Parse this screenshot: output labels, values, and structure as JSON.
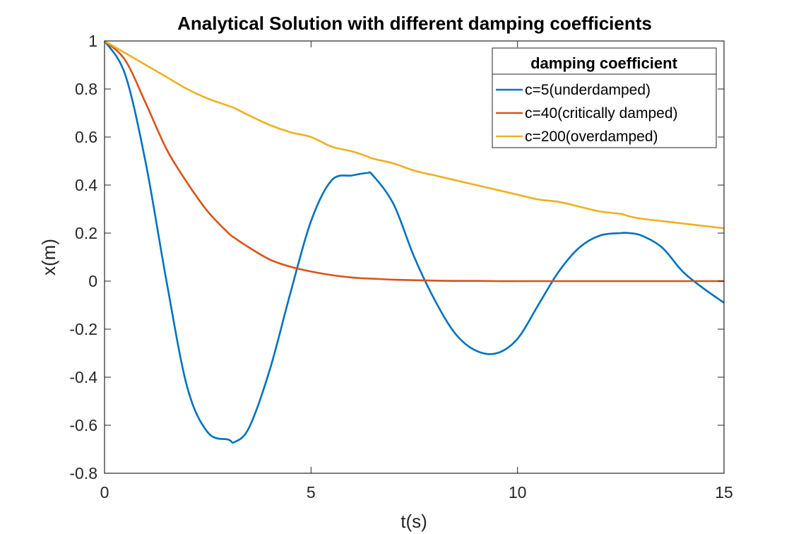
{
  "chart_data": {
    "type": "line",
    "title": "Analytical Solution with different damping coefficients",
    "xlabel": "t(s)",
    "ylabel": "x(m)",
    "xlim": [
      0,
      15
    ],
    "ylim": [
      -0.8,
      1
    ],
    "xticks": [
      "0",
      "5",
      "10",
      "15"
    ],
    "yticks": [
      "1",
      "0.8",
      "0.6",
      "0.4",
      "0.2",
      "0",
      "-0.2",
      "-0.4",
      "-0.6",
      "-0.8"
    ],
    "grid": false,
    "legend": {
      "title": "damping coefficient",
      "location": "top-right"
    },
    "x": [
      0,
      0.5,
      1,
      1.5,
      2,
      2.5,
      3,
      3.15,
      3.5,
      4,
      4.5,
      5,
      5.5,
      6,
      6.35,
      6.5,
      7,
      7.5,
      8,
      8.5,
      9,
      9.5,
      10,
      10.5,
      11,
      11.5,
      12,
      12.5,
      12.7,
      13,
      13.5,
      14,
      14.5,
      15
    ],
    "series": [
      {
        "name": "c=5(underdamped)",
        "color": "#0072BD",
        "values": [
          1.0,
          0.86,
          0.49,
          0.0,
          -0.44,
          -0.63,
          -0.66,
          -0.67,
          -0.61,
          -0.37,
          -0.05,
          0.25,
          0.42,
          0.44,
          0.45,
          0.44,
          0.32,
          0.1,
          -0.08,
          -0.22,
          -0.29,
          -0.3,
          -0.24,
          -0.1,
          0.04,
          0.14,
          0.19,
          0.2,
          0.2,
          0.19,
          0.14,
          0.04,
          -0.03,
          -0.09
        ]
      },
      {
        "name": "c=40(critically damped)",
        "color": "#D95319",
        "values": [
          1.0,
          0.92,
          0.74,
          0.55,
          0.41,
          0.29,
          0.2,
          0.18,
          0.14,
          0.09,
          0.06,
          0.04,
          0.025,
          0.015,
          0.011,
          0.01,
          0.006,
          0.004,
          0.002,
          0.001,
          0.001,
          0.0,
          0.0,
          0.0,
          0.0,
          0.0,
          0.0,
          0.0,
          0.0,
          0.0,
          0.0,
          0.0,
          0.0,
          0.0
        ]
      },
      {
        "name": "c=200(overdamped)",
        "color": "#EDB120",
        "values": [
          1.0,
          0.95,
          0.9,
          0.85,
          0.8,
          0.76,
          0.73,
          0.72,
          0.69,
          0.65,
          0.62,
          0.6,
          0.56,
          0.54,
          0.52,
          0.51,
          0.49,
          0.46,
          0.44,
          0.42,
          0.4,
          0.38,
          0.36,
          0.34,
          0.33,
          0.31,
          0.29,
          0.28,
          0.27,
          0.26,
          0.25,
          0.24,
          0.23,
          0.22
        ]
      }
    ]
  }
}
